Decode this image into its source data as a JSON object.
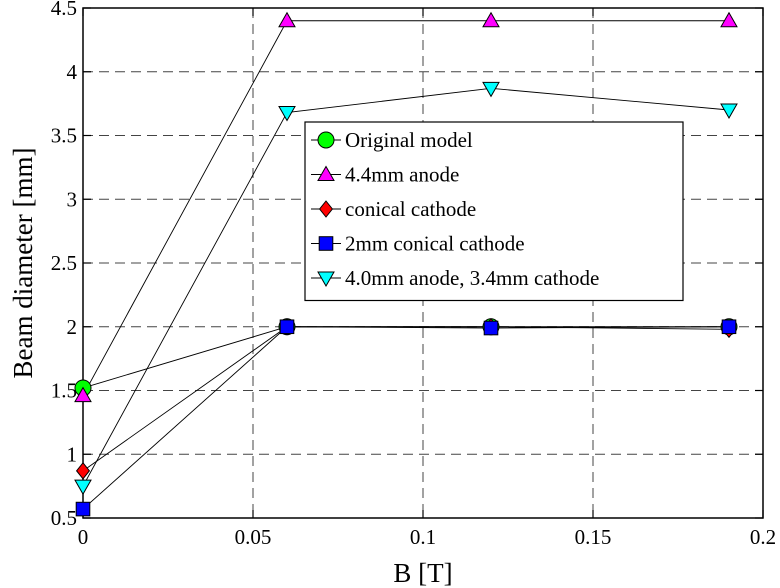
{
  "chart_data": {
    "type": "line",
    "title": "",
    "xlabel": "B [T]",
    "ylabel": "Beam diameter [mm]",
    "xlim": [
      0,
      0.2
    ],
    "ylim": [
      0.5,
      4.5
    ],
    "grid": true,
    "legend_position": "center",
    "x_ticks": [
      "0",
      "0.05",
      "0.1",
      "0.15",
      "0.2"
    ],
    "y_ticks": [
      "0.5",
      "1",
      "1.5",
      "2",
      "2.5",
      "3",
      "3.5",
      "4",
      "4.5"
    ],
    "x": [
      0,
      0.06,
      0.12,
      0.19
    ],
    "series": [
      {
        "name": "Original model",
        "values": [
          1.52,
          2.0,
          2.0,
          2.0
        ],
        "color": "#00ff00",
        "marker": "circle"
      },
      {
        "name": "4.4mm anode",
        "values": [
          1.46,
          4.4,
          4.4,
          4.4
        ],
        "color": "#ff00ff",
        "marker": "triangle-up"
      },
      {
        "name": "conical cathode",
        "values": [
          0.87,
          2.0,
          2.0,
          1.98
        ],
        "color": "#ff0000",
        "marker": "diamond"
      },
      {
        "name": "2mm conical cathode",
        "values": [
          0.57,
          2.0,
          1.99,
          2.0
        ],
        "color": "#0000ff",
        "marker": "square"
      },
      {
        "name": "4.0mm anode, 3.4mm cathode",
        "values": [
          0.75,
          3.68,
          3.87,
          3.7
        ],
        "color": "#00ffff",
        "marker": "triangle-down"
      }
    ]
  }
}
